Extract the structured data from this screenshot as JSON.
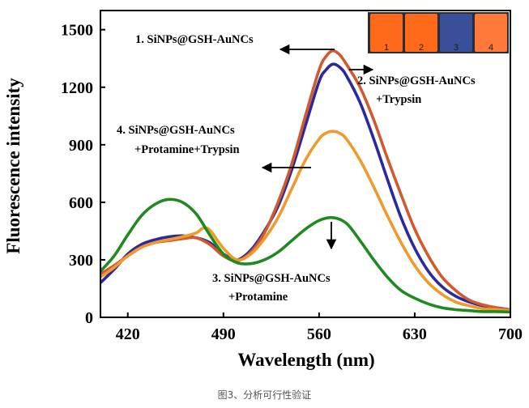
{
  "chart_data": {
    "type": "line",
    "xlabel": "Wavelength (nm)",
    "ylabel": "Fluorescence intensity",
    "xlim": [
      400,
      700
    ],
    "ylim": [
      0,
      1600
    ],
    "xticks": [
      420,
      490,
      560,
      630,
      700
    ],
    "yticks": [
      0,
      300,
      600,
      900,
      1200,
      1500
    ],
    "series": [
      {
        "color": "#2b2a9c",
        "x": [
          400,
          410,
          420,
          430,
          440,
          450,
          460,
          470,
          480,
          490,
          500,
          510,
          520,
          530,
          540,
          550,
          560,
          565,
          570,
          575,
          580,
          590,
          600,
          610,
          620,
          630,
          640,
          650,
          660,
          670,
          680,
          690,
          700
        ],
        "y": [
          180,
          250,
          330,
          380,
          405,
          420,
          425,
          415,
          390,
          330,
          300,
          350,
          450,
          580,
          770,
          1000,
          1230,
          1290,
          1320,
          1305,
          1260,
          1120,
          930,
          720,
          520,
          360,
          240,
          160,
          110,
          80,
          60,
          50,
          40
        ]
      },
      {
        "color": "#d2592e",
        "x": [
          400,
          410,
          420,
          430,
          440,
          450,
          460,
          470,
          480,
          490,
          500,
          510,
          520,
          530,
          540,
          550,
          560,
          565,
          570,
          575,
          580,
          590,
          600,
          610,
          620,
          630,
          640,
          650,
          660,
          670,
          680,
          690,
          700
        ],
        "y": [
          225,
          270,
          320,
          365,
          390,
          400,
          410,
          415,
          380,
          320,
          295,
          340,
          440,
          600,
          800,
          1050,
          1290,
          1360,
          1390,
          1370,
          1320,
          1200,
          1030,
          830,
          640,
          460,
          320,
          210,
          140,
          90,
          65,
          50,
          40
        ]
      },
      {
        "color": "#ef9a2b",
        "x": [
          400,
          410,
          420,
          430,
          440,
          450,
          460,
          470,
          475,
          480,
          490,
          500,
          510,
          520,
          530,
          540,
          550,
          560,
          565,
          570,
          575,
          580,
          590,
          600,
          610,
          620,
          630,
          640,
          650,
          660,
          670,
          680,
          690,
          700
        ],
        "y": [
          210,
          260,
          320,
          365,
          390,
          405,
          420,
          440,
          465,
          455,
          360,
          300,
          330,
          410,
          520,
          670,
          820,
          930,
          960,
          970,
          960,
          930,
          820,
          680,
          530,
          390,
          270,
          180,
          120,
          80,
          60,
          45,
          40,
          35
        ]
      },
      {
        "color": "#1f8a1f",
        "x": [
          400,
          410,
          420,
          430,
          440,
          450,
          460,
          470,
          480,
          490,
          500,
          510,
          520,
          530,
          540,
          550,
          560,
          570,
          580,
          590,
          600,
          610,
          620,
          630,
          640,
          650,
          660,
          670,
          680,
          690,
          700
        ],
        "y": [
          240,
          320,
          430,
          530,
          590,
          615,
          600,
          540,
          430,
          330,
          285,
          280,
          300,
          340,
          400,
          460,
          505,
          520,
          490,
          400,
          300,
          210,
          140,
          100,
          70,
          50,
          40,
          35,
          30,
          30,
          28
        ]
      }
    ],
    "annotations": [
      "1. SiNPs@GSH-AuNCs",
      "2. SiNPs@GSH-AuNCs",
      "+Trypsin",
      "4. SiNPs@GSH-AuNCs",
      "+Protamine+Trypsin",
      "3. SiNPs@GSH-AuNCs",
      "+Protamine"
    ],
    "inset_vial_labels": [
      "1",
      "2",
      "3",
      "4"
    ],
    "inset_vial_colors": [
      "#ff6a1a",
      "#ff6a1a",
      "#3a4f9a",
      "#ff7a3a"
    ]
  },
  "caption": "图3、分析可行性验证"
}
